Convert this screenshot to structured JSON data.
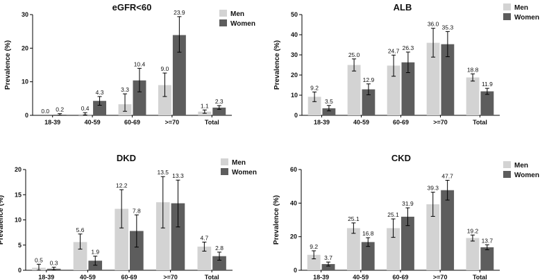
{
  "chart_data": [
    {
      "type": "bar",
      "title": "eGFR<60",
      "ylabel": "Prevalence (%)",
      "xlabel": "",
      "ylim": [
        0,
        30
      ],
      "yticks": [
        0,
        10,
        20,
        30
      ],
      "categories": [
        "18-39",
        "40-59",
        "60-69",
        ">=70",
        "Total"
      ],
      "legend": "top-right",
      "series": [
        {
          "name": "Men",
          "color": "#d3d3d3",
          "values": [
            0.0,
            0.4,
            3.3,
            9.0,
            1.1
          ],
          "labels": [
            "0.0",
            "0.4",
            "3.3",
            "9.0",
            "1.1"
          ],
          "err_low": [
            0.0,
            0.1,
            1.2,
            5.6,
            0.6
          ],
          "err_high": [
            0.0,
            0.8,
            6.4,
            12.6,
            1.6
          ]
        },
        {
          "name": "Women",
          "color": "#5d5d5d",
          "values": [
            0.2,
            4.3,
            10.4,
            23.9,
            2.3
          ],
          "labels": [
            "0.2",
            "4.3",
            "10.4",
            "23.9",
            "2.3"
          ],
          "err_low": [
            0.0,
            3.0,
            7.0,
            18.8,
            1.8
          ],
          "err_high": [
            0.5,
            5.6,
            14.0,
            29.4,
            2.9
          ]
        }
      ]
    },
    {
      "type": "bar",
      "title": "ALB",
      "ylabel": "Prevalence (%)",
      "xlabel": "",
      "ylim": [
        0,
        50
      ],
      "yticks": [
        0,
        10,
        20,
        30,
        40,
        50
      ],
      "categories": [
        "18-39",
        "40-59",
        "60-69",
        ">=70",
        "Total"
      ],
      "legend": "top-right",
      "series": [
        {
          "name": "Men",
          "color": "#d3d3d3",
          "values": [
            9.2,
            25.0,
            24.7,
            36.0,
            18.8
          ],
          "labels": [
            "9.2",
            "25.0",
            "24.7",
            "36.0",
            "18.8"
          ],
          "err_low": [
            6.8,
            22.0,
            19.4,
            28.9,
            17.0
          ],
          "err_high": [
            11.6,
            28.0,
            29.9,
            43.2,
            20.6
          ]
        },
        {
          "name": "Women",
          "color": "#5d5d5d",
          "values": [
            3.5,
            12.9,
            26.3,
            35.3,
            11.9
          ],
          "labels": [
            "3.5",
            "12.9",
            "26.3",
            "35.3",
            "11.9"
          ],
          "err_low": [
            2.2,
            10.2,
            21.2,
            29.1,
            10.4
          ],
          "err_high": [
            4.9,
            15.6,
            31.4,
            41.6,
            13.4
          ]
        }
      ]
    },
    {
      "type": "bar",
      "title": "DKD",
      "ylabel": "Prevalence (%)",
      "xlabel": "",
      "ylim": [
        0,
        20
      ],
      "yticks": [
        0,
        5,
        10,
        15,
        20
      ],
      "categories": [
        "18-39",
        "40-59",
        "60-69",
        ">=70",
        "Total"
      ],
      "legend": "top-right",
      "series": [
        {
          "name": "Men",
          "color": "#d3d3d3",
          "values": [
            0.5,
            5.6,
            12.2,
            13.5,
            4.7
          ],
          "labels": [
            "0.5",
            "5.6",
            "12.2",
            "13.5",
            "4.7"
          ],
          "err_low": [
            0.0,
            4.2,
            8.4,
            8.4,
            3.8
          ],
          "err_high": [
            1.2,
            7.2,
            16.0,
            18.6,
            5.6
          ]
        },
        {
          "name": "Women",
          "color": "#5d5d5d",
          "values": [
            0.3,
            1.9,
            7.8,
            13.3,
            2.8
          ],
          "labels": [
            "0.3",
            "1.9",
            "7.8",
            "13.3",
            "2.8"
          ],
          "err_low": [
            0.0,
            1.0,
            4.6,
            8.6,
            2.0
          ],
          "err_high": [
            0.6,
            2.8,
            11.0,
            17.9,
            3.6
          ]
        }
      ]
    },
    {
      "type": "bar",
      "title": "CKD",
      "ylabel": "Prevalence (%)",
      "xlabel": "",
      "ylim": [
        0,
        60
      ],
      "yticks": [
        0,
        20,
        40,
        60
      ],
      "categories": [
        "18-39",
        "40-59",
        "60-69",
        ">=70",
        "Total"
      ],
      "legend": "top-right",
      "series": [
        {
          "name": "Men",
          "color": "#d3d3d3",
          "values": [
            9.2,
            25.1,
            25.1,
            39.3,
            19.2
          ],
          "labels": [
            "9.2",
            "25.1",
            "25.1",
            "39.3",
            "19.2"
          ],
          "err_low": [
            6.8,
            22.0,
            19.6,
            32.1,
            17.4
          ],
          "err_high": [
            11.6,
            28.2,
            30.6,
            46.5,
            21.0
          ]
        },
        {
          "name": "Women",
          "color": "#5d5d5d",
          "values": [
            3.7,
            16.8,
            31.9,
            47.7,
            13.7
          ],
          "labels": [
            "3.7",
            "16.8",
            "31.9",
            "47.7",
            "13.7"
          ],
          "err_low": [
            2.5,
            14.2,
            26.6,
            41.8,
            12.2
          ],
          "err_high": [
            4.9,
            19.4,
            37.2,
            53.6,
            15.2
          ]
        }
      ]
    }
  ]
}
